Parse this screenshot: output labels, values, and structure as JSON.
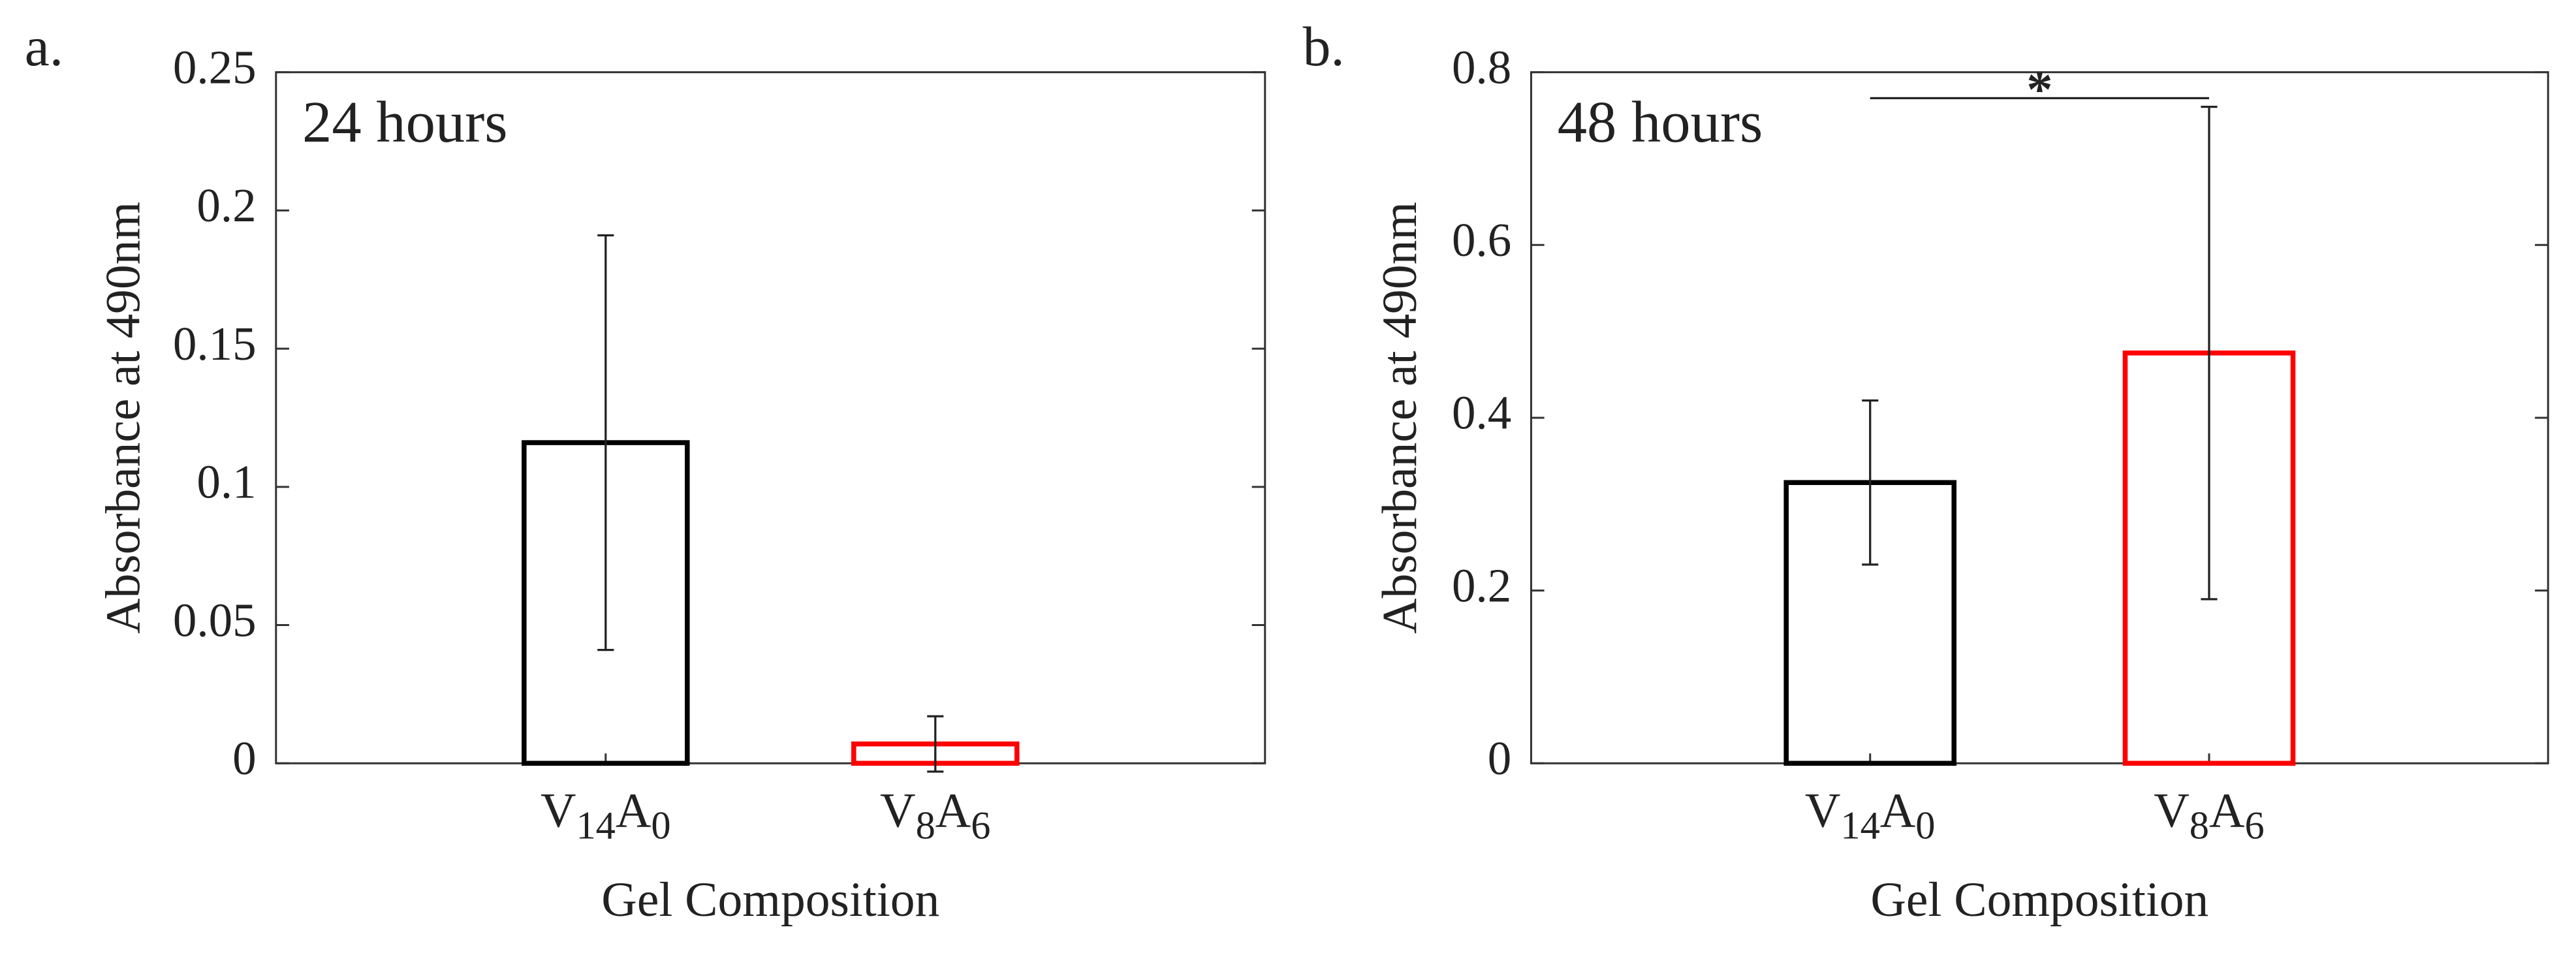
{
  "chart_data": [
    {
      "type": "bar",
      "panel_label": "a.",
      "annotation": "24 hours",
      "categories": [
        "V14A0",
        "V8A6"
      ],
      "series": [
        {
          "values": [
            0.116,
            0.007
          ],
          "errors": [
            0.075,
            0.01
          ],
          "colors": [
            "#000000",
            "#ff0000"
          ]
        }
      ],
      "ylabel": "Absorbance at 490nm",
      "xlabel": "Gel Composition",
      "ylim": [
        0,
        0.25
      ],
      "yticks": [
        0,
        0.05,
        0.1,
        0.15,
        0.2,
        0.25
      ]
    },
    {
      "type": "bar",
      "panel_label": "b.",
      "annotation": "48 hours",
      "categories": [
        "V14A0",
        "V8A6"
      ],
      "series": [
        {
          "values": [
            0.325,
            0.475
          ],
          "errors": [
            0.095,
            0.285
          ],
          "colors": [
            "#000000",
            "#ff0000"
          ]
        }
      ],
      "ylabel": "Absorbance at 490nm",
      "xlabel": "Gel Composition",
      "ylim": [
        0,
        0.8
      ],
      "yticks": [
        0,
        0.2,
        0.4,
        0.6,
        0.8
      ],
      "significance": {
        "label": "*",
        "y": 0.77,
        "from": 0,
        "to": 1
      }
    }
  ]
}
